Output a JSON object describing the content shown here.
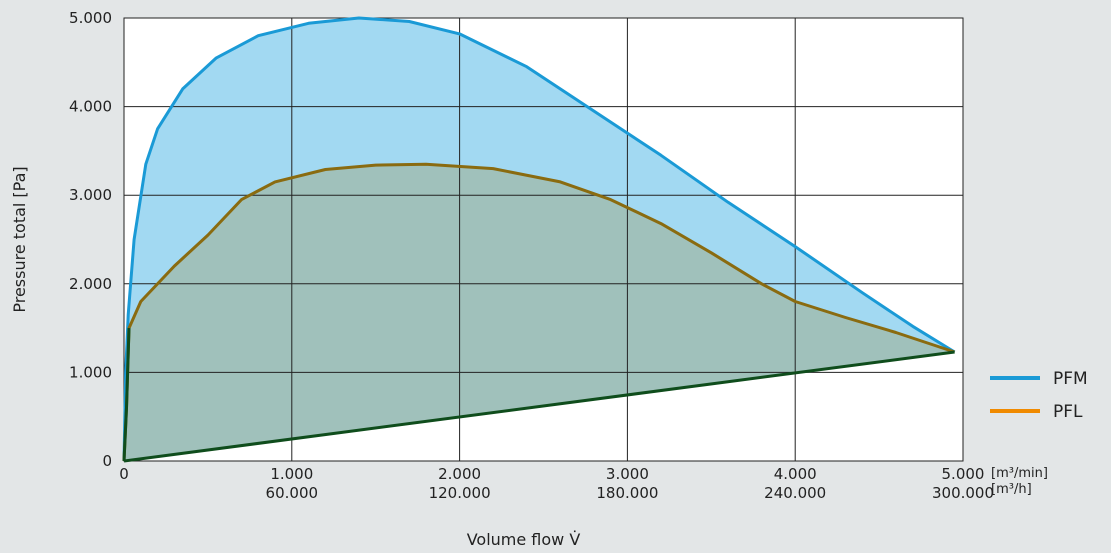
{
  "chart_data": {
    "type": "area",
    "title": "",
    "xlabel": "Volume flow V̇",
    "ylabel": "Pressure total [Pa]",
    "xlim": [
      0,
      5000
    ],
    "ylim": [
      0,
      5000
    ],
    "grid": true,
    "x_ticks": [
      {
        "value": 0,
        "label": "0",
        "label2": ""
      },
      {
        "value": 1000,
        "label": "1.000",
        "label2": "60.000"
      },
      {
        "value": 2000,
        "label": "2.000",
        "label2": "120.000"
      },
      {
        "value": 3000,
        "label": "3.000",
        "label2": "180.000"
      },
      {
        "value": 4000,
        "label": "4.000",
        "label2": "240.000"
      },
      {
        "value": 5000,
        "label": "5.000",
        "label2": "300.000"
      }
    ],
    "x_units": [
      "[m³/min]",
      "[m³/h]"
    ],
    "y_ticks": [
      {
        "value": 0,
        "label": "0"
      },
      {
        "value": 1000,
        "label": "1.000"
      },
      {
        "value": 2000,
        "label": "2.000"
      },
      {
        "value": 3000,
        "label": "3.000"
      },
      {
        "value": 4000,
        "label": "4.000"
      },
      {
        "value": 5000,
        "label": "5.000"
      }
    ],
    "legend_position": "right",
    "series": [
      {
        "name": "PFM",
        "color": "#1a9ad6",
        "fill": "#a2d9f2",
        "upper": [
          [
            0,
            0
          ],
          [
            10,
            1000
          ],
          [
            25,
            1650
          ],
          [
            60,
            2500
          ],
          [
            130,
            3350
          ],
          [
            200,
            3750
          ],
          [
            350,
            4200
          ],
          [
            550,
            4550
          ],
          [
            800,
            4800
          ],
          [
            1100,
            4940
          ],
          [
            1400,
            5000
          ],
          [
            1700,
            4960
          ],
          [
            2000,
            4820
          ],
          [
            2400,
            4450
          ],
          [
            2800,
            3950
          ],
          [
            3200,
            3450
          ],
          [
            3600,
            2920
          ],
          [
            4000,
            2420
          ],
          [
            4400,
            1900
          ],
          [
            4700,
            1520
          ],
          [
            4950,
            1230
          ]
        ],
        "lower": [
          [
            0,
            0
          ],
          [
            4950,
            1230
          ]
        ]
      },
      {
        "name": "PFL",
        "color": "#8a6b10",
        "legend_color": "#f08a00",
        "fill": "#a0c1bb",
        "upper": [
          [
            0,
            0
          ],
          [
            15,
            600
          ],
          [
            30,
            1500
          ],
          [
            100,
            1800
          ],
          [
            300,
            2200
          ],
          [
            500,
            2550
          ],
          [
            700,
            2950
          ],
          [
            900,
            3150
          ],
          [
            1200,
            3290
          ],
          [
            1500,
            3340
          ],
          [
            1800,
            3350
          ],
          [
            2200,
            3300
          ],
          [
            2600,
            3150
          ],
          [
            2900,
            2950
          ],
          [
            3200,
            2680
          ],
          [
            3500,
            2350
          ],
          [
            3800,
            2000
          ],
          [
            4000,
            1800
          ],
          [
            4300,
            1620
          ],
          [
            4600,
            1450
          ],
          [
            4950,
            1230
          ]
        ],
        "lower": [
          [
            0,
            0
          ],
          [
            4950,
            1230
          ]
        ]
      }
    ]
  }
}
